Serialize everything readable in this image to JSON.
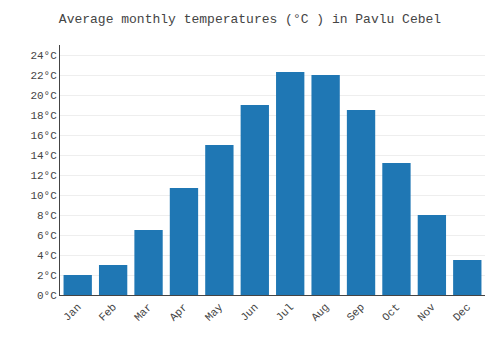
{
  "chart_data": {
    "type": "bar",
    "title": "Average monthly temperatures (°C ) in Pavlu Cebel",
    "categories": [
      "Jan",
      "Feb",
      "Mar",
      "Apr",
      "May",
      "Jun",
      "Jul",
      "Aug",
      "Sep",
      "Oct",
      "Nov",
      "Dec"
    ],
    "values": [
      2.0,
      3.0,
      6.5,
      10.7,
      15.0,
      19.0,
      22.3,
      22.0,
      18.5,
      13.2,
      8.0,
      3.5
    ],
    "ylim": [
      0,
      25
    ],
    "yticks": [
      {
        "value": 0,
        "label": "0°C"
      },
      {
        "value": 2,
        "label": "2°C"
      },
      {
        "value": 4,
        "label": "4°C"
      },
      {
        "value": 6,
        "label": "6°C"
      },
      {
        "value": 8,
        "label": "8°C"
      },
      {
        "value": 10,
        "label": "10°C"
      },
      {
        "value": 12,
        "label": "12°C"
      },
      {
        "value": 14,
        "label": "14°C"
      },
      {
        "value": 16,
        "label": "16°C"
      },
      {
        "value": 18,
        "label": "18°C"
      },
      {
        "value": 20,
        "label": "20°C"
      },
      {
        "value": 22,
        "label": "22°C"
      },
      {
        "value": 24,
        "label": "24°C"
      }
    ],
    "grid": true
  }
}
